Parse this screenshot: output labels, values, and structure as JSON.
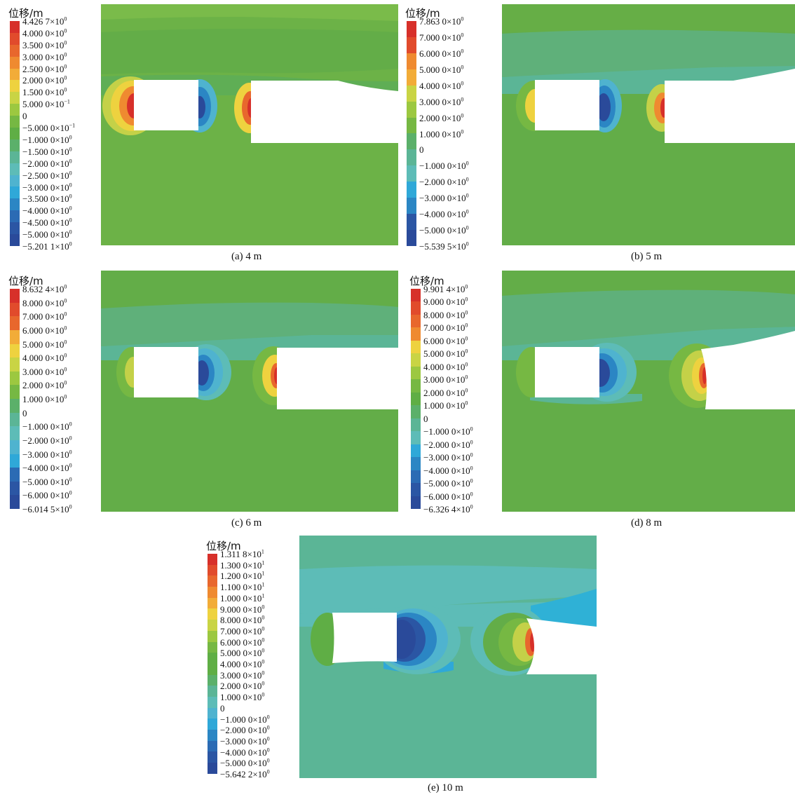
{
  "legend_title": "位移/m",
  "colors": {
    "scale": [
      "#d7302a",
      "#e14b2c",
      "#e8672d",
      "#ef8a30",
      "#f2ac38",
      "#eed23f",
      "#c9d444",
      "#9cc840",
      "#76b843",
      "#5fae45",
      "#5bb06a",
      "#5bb596",
      "#5dbcb7",
      "#4fb3cf",
      "#2fa8d8",
      "#2b86c4",
      "#2b6bb4",
      "#2b56a4",
      "#2a4a9a"
    ],
    "field_base": "#6eb246",
    "field_light": "#63ad4a",
    "field_teal": "#5bb39a",
    "field_cyan": "#4fb8c8"
  },
  "panels": [
    {
      "id": "a",
      "caption": "(a) 4 m",
      "legend_labels": [
        [
          "4.426 7×10",
          "0"
        ],
        [
          "4.000 0×10",
          "0"
        ],
        [
          "3.500 0×10",
          "0"
        ],
        [
          "3.000 0×10",
          "0"
        ],
        [
          "2.500 0×10",
          "0"
        ],
        [
          "2.000 0×10",
          "0"
        ],
        [
          "1.500 0×10",
          "0"
        ],
        [
          "5.000 0×10",
          "−1"
        ],
        [
          "0",
          ""
        ],
        [
          "−5.000 0×10",
          "−1"
        ],
        [
          "−1.000 0×10",
          "0"
        ],
        [
          "−1.500 0×10",
          "0"
        ],
        [
          "−2.000 0×10",
          "0"
        ],
        [
          "−2.500 0×10",
          "0"
        ],
        [
          "−3.000 0×10",
          "0"
        ],
        [
          "−3.500 0×10",
          "0"
        ],
        [
          "−4.000 0×10",
          "0"
        ],
        [
          "−4.500 0×10",
          "0"
        ],
        [
          "−5.000 0×10",
          "0"
        ],
        [
          "−5.201 1×10",
          "0"
        ]
      ]
    },
    {
      "id": "b",
      "caption": "(b) 5 m",
      "legend_labels": [
        [
          "7.863 0×10",
          "0"
        ],
        [
          "7.000 0×10",
          "0"
        ],
        [
          "6.000 0×10",
          "0"
        ],
        [
          "5.000 0×10",
          "0"
        ],
        [
          "4.000 0×10",
          "0"
        ],
        [
          "3.000 0×10",
          "0"
        ],
        [
          "2.000 0×10",
          "0"
        ],
        [
          "1.000 0×10",
          "0"
        ],
        [
          "0",
          ""
        ],
        [
          "−1.000 0×10",
          "0"
        ],
        [
          "−2.000 0×10",
          "0"
        ],
        [
          "−3.000 0×10",
          "0"
        ],
        [
          "−4.000 0×10",
          "0"
        ],
        [
          "−5.000 0×10",
          "0"
        ],
        [
          "−5.539 5×10",
          "0"
        ]
      ]
    },
    {
      "id": "c",
      "caption": "(c) 6 m",
      "legend_labels": [
        [
          "8.632 4×10",
          "0"
        ],
        [
          "8.000 0×10",
          "0"
        ],
        [
          "7.000 0×10",
          "0"
        ],
        [
          "6.000 0×10",
          "0"
        ],
        [
          "5.000 0×10",
          "0"
        ],
        [
          "4.000 0×10",
          "0"
        ],
        [
          "3.000 0×10",
          "0"
        ],
        [
          "2.000 0×10",
          "0"
        ],
        [
          "1.000 0×10",
          "0"
        ],
        [
          "0",
          ""
        ],
        [
          "−1.000 0×10",
          "0"
        ],
        [
          "−2.000 0×10",
          "0"
        ],
        [
          "−3.000 0×10",
          "0"
        ],
        [
          "−4.000 0×10",
          "0"
        ],
        [
          "−5.000 0×10",
          "0"
        ],
        [
          "−6.000 0×10",
          "0"
        ],
        [
          "−6.014 5×10",
          "0"
        ]
      ]
    },
    {
      "id": "d",
      "caption": "(d) 8 m",
      "legend_labels": [
        [
          "9.901 4×10",
          "0"
        ],
        [
          "9.000 0×10",
          "0"
        ],
        [
          "8.000 0×10",
          "0"
        ],
        [
          "7.000 0×10",
          "0"
        ],
        [
          "6.000 0×10",
          "0"
        ],
        [
          "5.000 0×10",
          "0"
        ],
        [
          "4.000 0×10",
          "0"
        ],
        [
          "3.000 0×10",
          "0"
        ],
        [
          "2.000 0×10",
          "0"
        ],
        [
          "1.000 0×10",
          "0"
        ],
        [
          "0",
          ""
        ],
        [
          "−1.000 0×10",
          "0"
        ],
        [
          "−2.000 0×10",
          "0"
        ],
        [
          "−3.000 0×10",
          "0"
        ],
        [
          "−4.000 0×10",
          "0"
        ],
        [
          "−5.000 0×10",
          "0"
        ],
        [
          "−6.000 0×10",
          "0"
        ],
        [
          "−6.326 4×10",
          "0"
        ]
      ]
    },
    {
      "id": "e",
      "caption": "(e) 10 m",
      "legend_labels": [
        [
          "1.311 8×10",
          "1"
        ],
        [
          "1.300 0×10",
          "1"
        ],
        [
          "1.200 0×10",
          "1"
        ],
        [
          "1.100 0×10",
          "1"
        ],
        [
          "1.000 0×10",
          "1"
        ],
        [
          "9.000 0×10",
          "0"
        ],
        [
          "8.000 0×10",
          "0"
        ],
        [
          "7.000 0×10",
          "0"
        ],
        [
          "6.000 0×10",
          "0"
        ],
        [
          "5.000 0×10",
          "0"
        ],
        [
          "4.000 0×10",
          "0"
        ],
        [
          "3.000 0×10",
          "0"
        ],
        [
          "2.000 0×10",
          "0"
        ],
        [
          "1.000 0×10",
          "0"
        ],
        [
          "0",
          ""
        ],
        [
          "−1.000 0×10",
          "0"
        ],
        [
          "−2.000 0×10",
          "0"
        ],
        [
          "−3.000 0×10",
          "0"
        ],
        [
          "−4.000 0×10",
          "0"
        ],
        [
          "−5.000 0×10",
          "0"
        ],
        [
          "−5.642 2×10",
          "0"
        ]
      ]
    }
  ]
}
